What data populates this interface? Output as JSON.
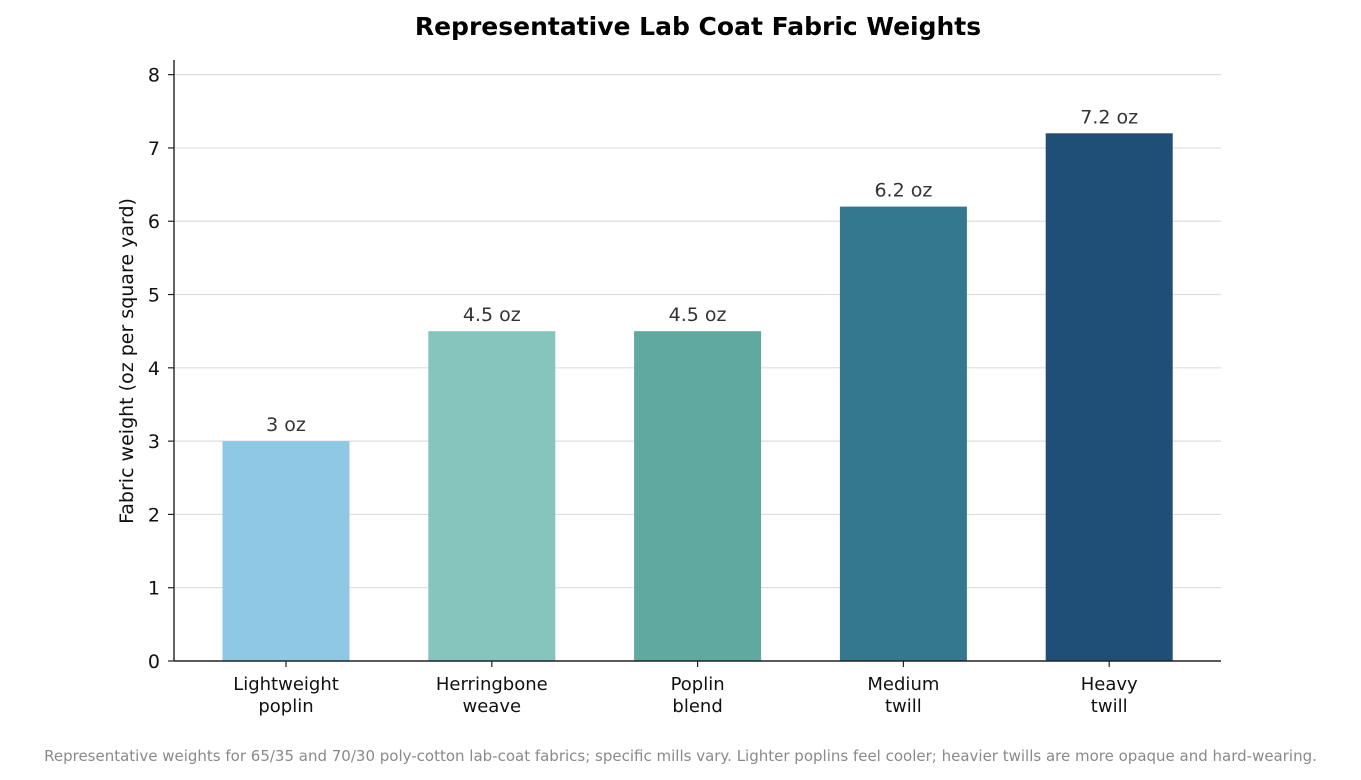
{
  "chart_data": {
    "type": "bar",
    "title": "Representative Lab Coat Fabric Weights",
    "ylabel": "Fabric weight (oz per square yard)",
    "xlabel": "",
    "categories": [
      [
        "Lightweight",
        "poplin"
      ],
      [
        "Herringbone",
        "weave"
      ],
      [
        "Poplin",
        "blend"
      ],
      [
        "Medium",
        "twill"
      ],
      [
        "Heavy",
        "twill"
      ]
    ],
    "values": [
      3.0,
      4.5,
      4.5,
      6.2,
      7.2
    ],
    "value_labels": [
      "3 oz",
      "4.5 oz",
      "4.5 oz",
      "6.2 oz",
      "7.2 oz"
    ],
    "colors": [
      "#8fc8e4",
      "#86c4be",
      "#5fa9a0",
      "#34788d",
      "#1f4e76"
    ],
    "ylim": [
      0,
      8.2
    ],
    "yticks": [
      0,
      1,
      2,
      3,
      4,
      5,
      6,
      7,
      8
    ],
    "grid": true,
    "gridlines": "horizontal"
  },
  "footnote": "Representative weights for 65/35 and 70/30 poly-cotton lab-coat fabrics; specific mills vary. Lighter poplins feel cooler; heavier twills are more opaque and hard-wearing."
}
